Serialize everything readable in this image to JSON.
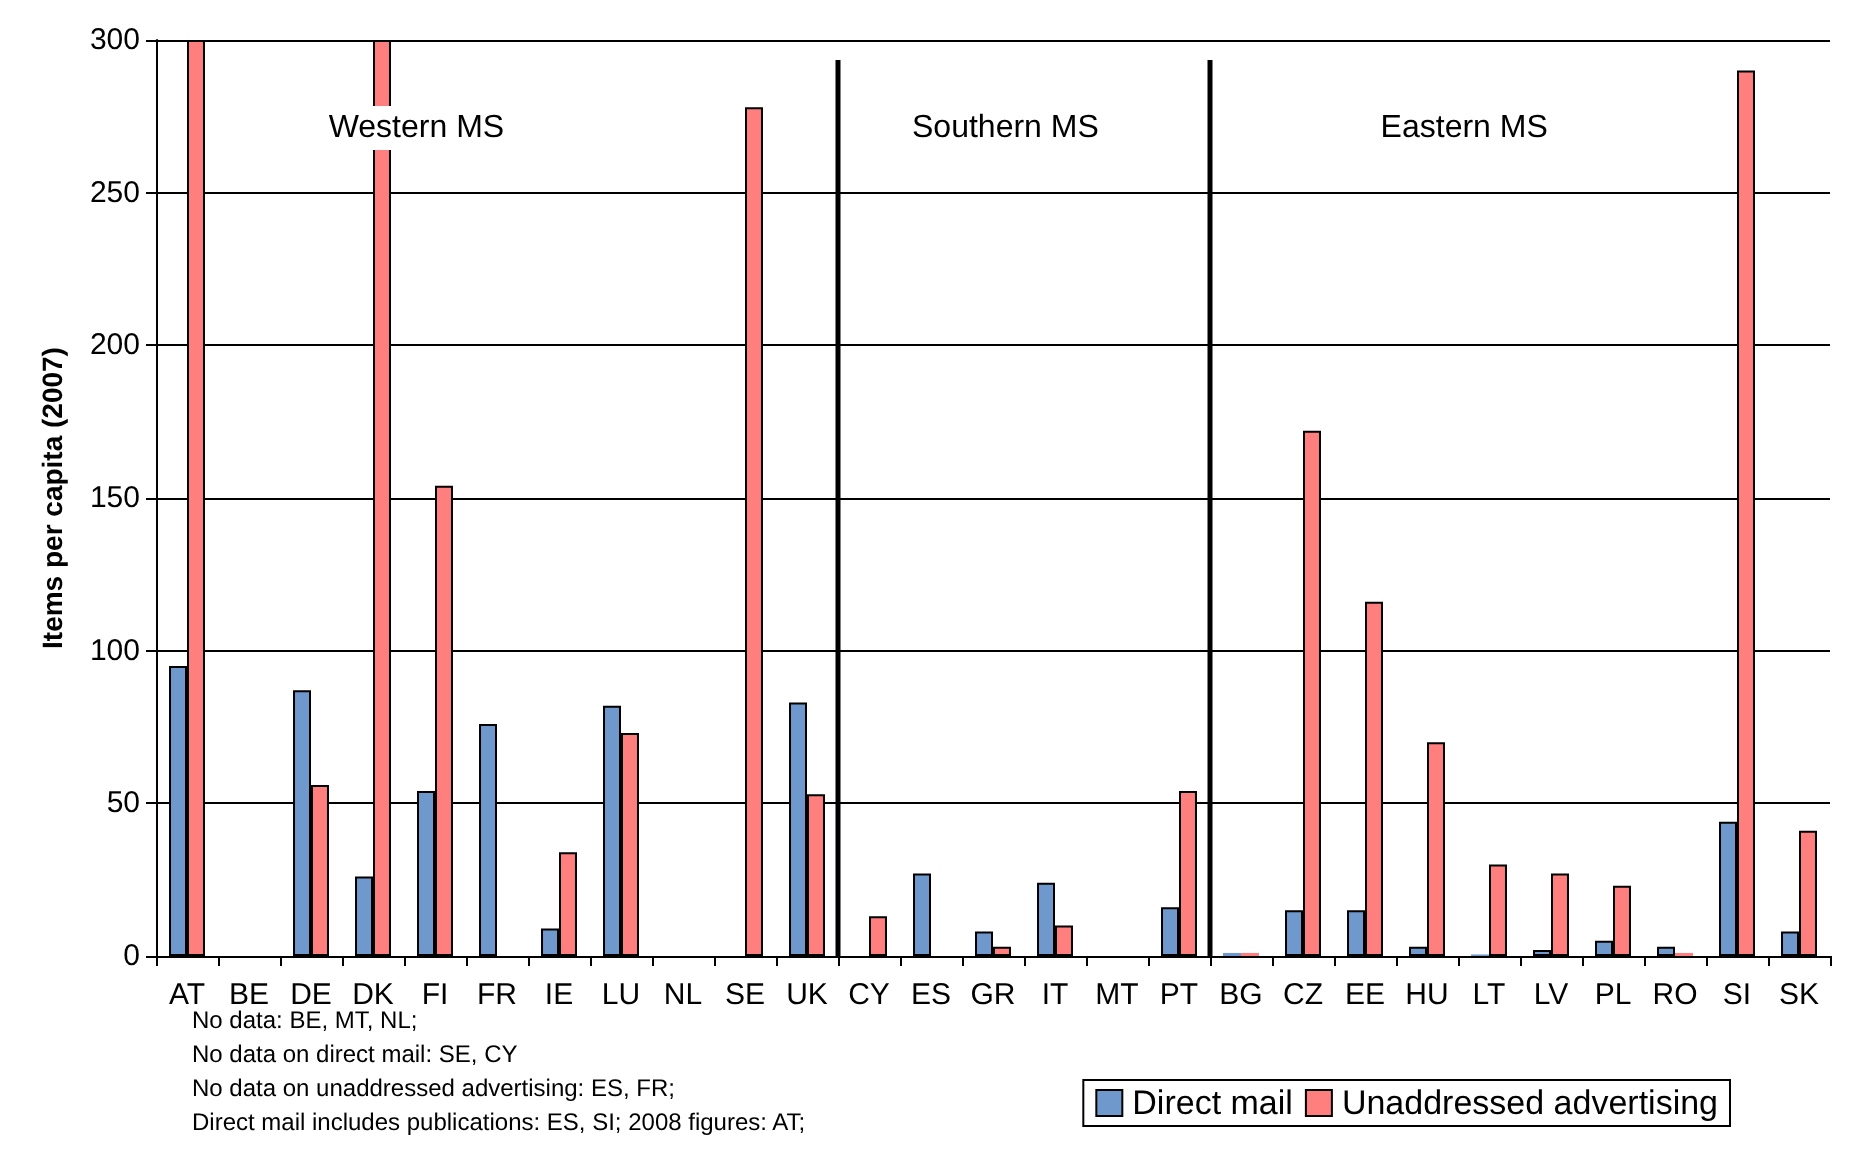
{
  "chart_data": {
    "type": "bar",
    "ylabel": "Items per capita (2007)",
    "categories": [
      "AT",
      "BE",
      "DE",
      "DK",
      "FI",
      "FR",
      "IE",
      "LU",
      "NL",
      "SE",
      "UK",
      "CY",
      "ES",
      "GR",
      "IT",
      "MT",
      "PT",
      "BG",
      "CZ",
      "EE",
      "HU",
      "LT",
      "LV",
      "PL",
      "RO",
      "SI",
      "SK"
    ],
    "series": [
      {
        "name": "Direct mail",
        "color": "#6f99cc",
        "values": [
          95,
          null,
          87,
          26,
          54,
          76,
          9,
          82,
          null,
          null,
          83,
          null,
          27,
          8,
          24,
          null,
          16,
          1,
          15,
          15,
          3,
          0.5,
          2,
          5,
          3,
          44,
          8
        ]
      },
      {
        "name": "Unaddressed advertising",
        "color": "#ff7f7f",
        "values": [
          300,
          null,
          56,
          300,
          154,
          null,
          34,
          73,
          null,
          278,
          53,
          13,
          null,
          3,
          10,
          null,
          54,
          1,
          172,
          116,
          70,
          30,
          27,
          23,
          1,
          290,
          41
        ]
      }
    ],
    "ylim": [
      0,
      300
    ],
    "yticks": [
      0,
      50,
      100,
      150,
      200,
      250,
      300
    ],
    "grid": "y",
    "legend": "bottom right",
    "annotations": [
      "Western MS",
      "Southern MS",
      "Eastern MS",
      "No data: BE, MT, NL;",
      "No data on direct mail: SE, CY",
      "No data on unaddressed advertising: ES, FR;",
      "Direct mail includes publications: ES, SI; 2008 figures: AT;"
    ]
  }
}
